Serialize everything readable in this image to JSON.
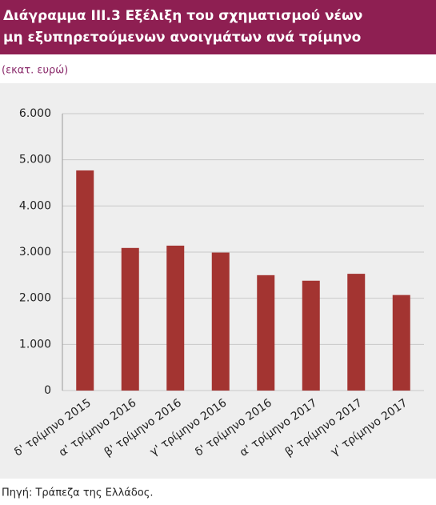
{
  "chart_data": {
    "type": "bar",
    "title_lines": [
      "Διάγραμμα ΙΙΙ.3 Εξέλιξη του σχηματισμού νέων",
      "μη εξυπηρετούμενων ανοιγμάτων ανά τρίμηνο"
    ],
    "subtitle": "(εκατ. ευρώ)",
    "source": "Πηγή: Τράπεζα της Ελλάδος.",
    "categories": [
      "δ' τρίμηνο 2015",
      "α' τρίμηνο 2016",
      "β' τρίμηνο 2016",
      "γ' τρίμηνο 2016",
      "δ' τρίμηνο 2016",
      "α' τρίμηνο 2017",
      "β' τρίμηνο 2017",
      "γ' τρίμηνο 2017"
    ],
    "values": [
      4770,
      3090,
      3140,
      2990,
      2500,
      2380,
      2530,
      2070
    ],
    "color": "#a33431",
    "ylim": [
      0,
      6000
    ],
    "yticks": [
      0,
      {
        "value": 1000,
        "label": "1.000"
      },
      {
        "value": 2000,
        "label": "2.000"
      },
      {
        "value": 3000,
        "label": "3.000"
      },
      {
        "value": 4000,
        "label": "4.000"
      },
      {
        "value": 5000,
        "label": "5.000"
      },
      {
        "value": 6000,
        "label": "6.000"
      }
    ],
    "grid": true
  }
}
